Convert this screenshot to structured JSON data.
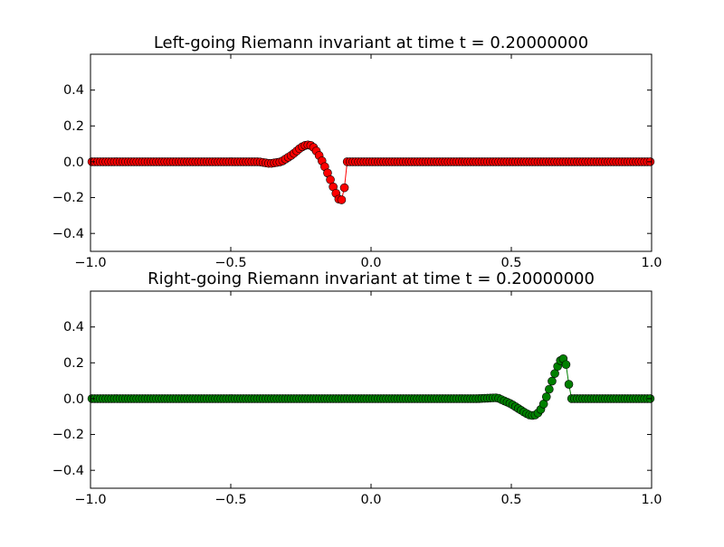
{
  "charts": [
    {
      "title": "Left-going Riemann invariant at time t =     0.20000000",
      "x_ticks": [
        "−1.0",
        "−0.5",
        "0.0",
        "0.5",
        "1.0"
      ],
      "y_ticks": [
        "−0.4",
        "−0.2",
        "0.0",
        "0.2",
        "0.4"
      ]
    },
    {
      "title": "Right-going Riemann invariant at time t =     0.20000000",
      "x_ticks": [
        "−1.0",
        "−0.5",
        "0.0",
        "0.5",
        "1.0"
      ],
      "y_ticks": [
        "−0.4",
        "−0.2",
        "0.0",
        "0.2",
        "0.4"
      ]
    }
  ],
  "chart_data": [
    {
      "type": "line",
      "title": "Left-going Riemann invariant at time t =     0.20000000",
      "xlim": [
        -1.0,
        1.0
      ],
      "ylim": [
        -0.5,
        0.6
      ],
      "x_ticks": [
        -1.0,
        -0.5,
        0.0,
        0.5,
        1.0
      ],
      "y_ticks": [
        -0.4,
        -0.2,
        0.0,
        0.2,
        0.4
      ],
      "marker": "circle",
      "color": "#ff0000",
      "n_points": 200,
      "baseline": 0.0,
      "profile_x": [
        -0.4,
        -0.36,
        -0.32,
        -0.28,
        -0.25,
        -0.23,
        -0.21,
        -0.19,
        -0.17,
        -0.15,
        -0.13,
        -0.11,
        -0.1,
        -0.09,
        -0.085
      ],
      "profile_y": [
        0.0,
        -0.01,
        0.0,
        0.04,
        0.08,
        0.095,
        0.09,
        0.05,
        -0.01,
        -0.08,
        -0.16,
        -0.225,
        -0.2,
        -0.09,
        -0.02
      ],
      "grid": false
    },
    {
      "type": "line",
      "title": "Right-going Riemann invariant at time t =     0.20000000",
      "xlim": [
        -1.0,
        1.0
      ],
      "ylim": [
        -0.5,
        0.6
      ],
      "x_ticks": [
        -1.0,
        -0.5,
        0.0,
        0.5,
        1.0
      ],
      "y_ticks": [
        -0.4,
        -0.2,
        0.0,
        0.2,
        0.4
      ],
      "marker": "circle",
      "color": "#008000",
      "n_points": 200,
      "baseline": 0.0,
      "profile_x": [
        0.38,
        0.45,
        0.5,
        0.55,
        0.57,
        0.59,
        0.61,
        0.63,
        0.65,
        0.67,
        0.68,
        0.69,
        0.7,
        0.705,
        0.71
      ],
      "profile_y": [
        0.0,
        0.005,
        -0.03,
        -0.08,
        -0.095,
        -0.09,
        -0.05,
        0.03,
        0.12,
        0.2,
        0.225,
        0.22,
        0.16,
        0.08,
        0.02
      ],
      "grid": false
    }
  ]
}
